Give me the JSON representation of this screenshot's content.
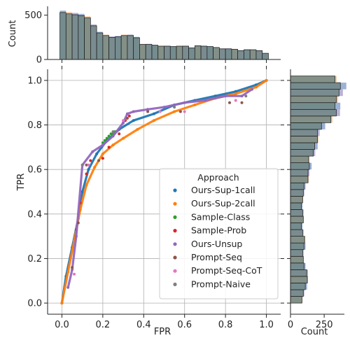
{
  "chart_data": {
    "type": "scatter",
    "xlabel": "FPR",
    "ylabel": "TPR",
    "xlim": [
      -0.07,
      1.07
    ],
    "ylim": [
      -0.05,
      1.05
    ],
    "x_ticks": [
      "0.0",
      "0.2",
      "0.4",
      "0.6",
      "0.8",
      "1.0"
    ],
    "y_ticks": [
      "0.0",
      "0.2",
      "0.4",
      "0.6",
      "0.8",
      "1.0"
    ],
    "grid": true,
    "legend": {
      "title": "Approach",
      "location": "lower right",
      "entries": [
        "Ours-Sup-1call",
        "Ours-Sup-2call",
        "Sample-Class",
        "Sample-Prob",
        "Ours-Unsup",
        "Prompt-Seq",
        "Prompt-Seq-CoT",
        "Prompt-Naive"
      ]
    },
    "series": [
      {
        "name": "Ours-Sup-1call",
        "color": "#1f77b4",
        "x": [
          0.0,
          0.02,
          0.05,
          0.08,
          0.1,
          0.13,
          0.17,
          0.22,
          0.28,
          0.35,
          0.45,
          0.55,
          0.65,
          0.75,
          0.85,
          0.95,
          1.0
        ],
        "y": [
          0.0,
          0.12,
          0.25,
          0.38,
          0.5,
          0.6,
          0.67,
          0.73,
          0.78,
          0.82,
          0.85,
          0.89,
          0.91,
          0.93,
          0.95,
          0.98,
          1.0
        ]
      },
      {
        "name": "Ours-Sup-2call",
        "color": "#ff7f0e",
        "x": [
          0.0,
          0.03,
          0.06,
          0.09,
          0.12,
          0.16,
          0.2,
          0.25,
          0.3,
          0.37,
          0.45,
          0.55,
          0.65,
          0.75,
          0.85,
          0.95,
          1.0
        ],
        "y": [
          0.0,
          0.14,
          0.28,
          0.42,
          0.53,
          0.61,
          0.67,
          0.71,
          0.74,
          0.78,
          0.82,
          0.86,
          0.89,
          0.92,
          0.94,
          0.97,
          1.0
        ]
      },
      {
        "name": "Sample-Class",
        "color": "#2ca02c",
        "x": [
          0.2,
          0.21,
          0.22,
          0.23,
          0.24,
          0.25,
          0.26
        ],
        "y": [
          0.72,
          0.73,
          0.74,
          0.75,
          0.76,
          0.76,
          0.77
        ]
      },
      {
        "name": "Sample-Prob",
        "color": "#d62728",
        "x": [
          0.07,
          0.09,
          0.12,
          0.14,
          0.2,
          0.23,
          0.28,
          0.31,
          0.33
        ],
        "y": [
          0.33,
          0.45,
          0.58,
          0.64,
          0.65,
          0.7,
          0.76,
          0.82,
          0.84
        ]
      },
      {
        "name": "Ours-Unsup",
        "color": "#9467bd",
        "x": [
          0.03,
          0.05,
          0.07,
          0.1,
          0.15,
          0.2,
          0.25,
          0.3,
          0.32,
          0.35,
          0.42,
          0.5,
          0.6,
          0.7,
          0.8,
          0.88,
          0.93
        ],
        "y": [
          0.07,
          0.15,
          0.3,
          0.62,
          0.68,
          0.71,
          0.75,
          0.81,
          0.85,
          0.86,
          0.87,
          0.88,
          0.9,
          0.91,
          0.93,
          0.93,
          0.96
        ]
      },
      {
        "name": "Prompt-Seq",
        "color": "#8c564b",
        "x": [
          0.05,
          0.08,
          0.12,
          0.18,
          0.32,
          0.42,
          0.58,
          0.82,
          0.88
        ],
        "y": [
          0.16,
          0.36,
          0.62,
          0.64,
          0.83,
          0.86,
          0.86,
          0.9,
          0.9
        ]
      },
      {
        "name": "Prompt-Seq-CoT",
        "color": "#e377c2",
        "x": [
          0.06,
          0.13,
          0.3,
          0.48,
          0.6,
          0.85
        ],
        "y": [
          0.13,
          0.62,
          0.82,
          0.86,
          0.86,
          0.91
        ]
      },
      {
        "name": "Prompt-Naive",
        "color": "#7f7f7f",
        "x": [
          0.1,
          0.25,
          0.55,
          0.9
        ],
        "y": [
          0.62,
          0.77,
          0.88,
          0.93
        ]
      }
    ],
    "marginal_x": {
      "ylabel": "Count",
      "y_ticks": [
        "0",
        "500"
      ],
      "ylim": [
        0,
        600
      ],
      "bins": [
        -0.01,
        0.02,
        0.05,
        0.08,
        0.11,
        0.14,
        0.17,
        0.2,
        0.23,
        0.26,
        0.29,
        0.32,
        0.35,
        0.38,
        0.41,
        0.44,
        0.47,
        0.5,
        0.53,
        0.56,
        0.59,
        0.62,
        0.65,
        0.68,
        0.71,
        0.74,
        0.77,
        0.8,
        0.83,
        0.86,
        0.89,
        0.92,
        0.95,
        0.98,
        1.01
      ],
      "counts": [
        530,
        515,
        505,
        495,
        470,
        380,
        300,
        270,
        250,
        255,
        270,
        270,
        245,
        170,
        170,
        160,
        150,
        150,
        145,
        150,
        150,
        130,
        155,
        150,
        145,
        135,
        120,
        120,
        115,
        100,
        110,
        110,
        100,
        70
      ]
    },
    "marginal_y": {
      "xlabel": "Count",
      "x_ticks": [
        "0",
        "250"
      ],
      "xlim": [
        0,
        400
      ],
      "bins": [
        0.0,
        0.03,
        0.06,
        0.09,
        0.12,
        0.15,
        0.18,
        0.21,
        0.24,
        0.27,
        0.3,
        0.33,
        0.36,
        0.39,
        0.42,
        0.45,
        0.48,
        0.51,
        0.54,
        0.57,
        0.6,
        0.63,
        0.66,
        0.69,
        0.72,
        0.75,
        0.78,
        0.81,
        0.84,
        0.87,
        0.9,
        0.93,
        0.96,
        0.99,
        1.02
      ],
      "counts": [
        85,
        95,
        110,
        125,
        120,
        100,
        95,
        90,
        100,
        105,
        90,
        80,
        95,
        90,
        80,
        90,
        95,
        100,
        130,
        130,
        140,
        135,
        170,
        180,
        200,
        200,
        230,
        300,
        340,
        330,
        340,
        360,
        370,
        330
      ]
    }
  }
}
